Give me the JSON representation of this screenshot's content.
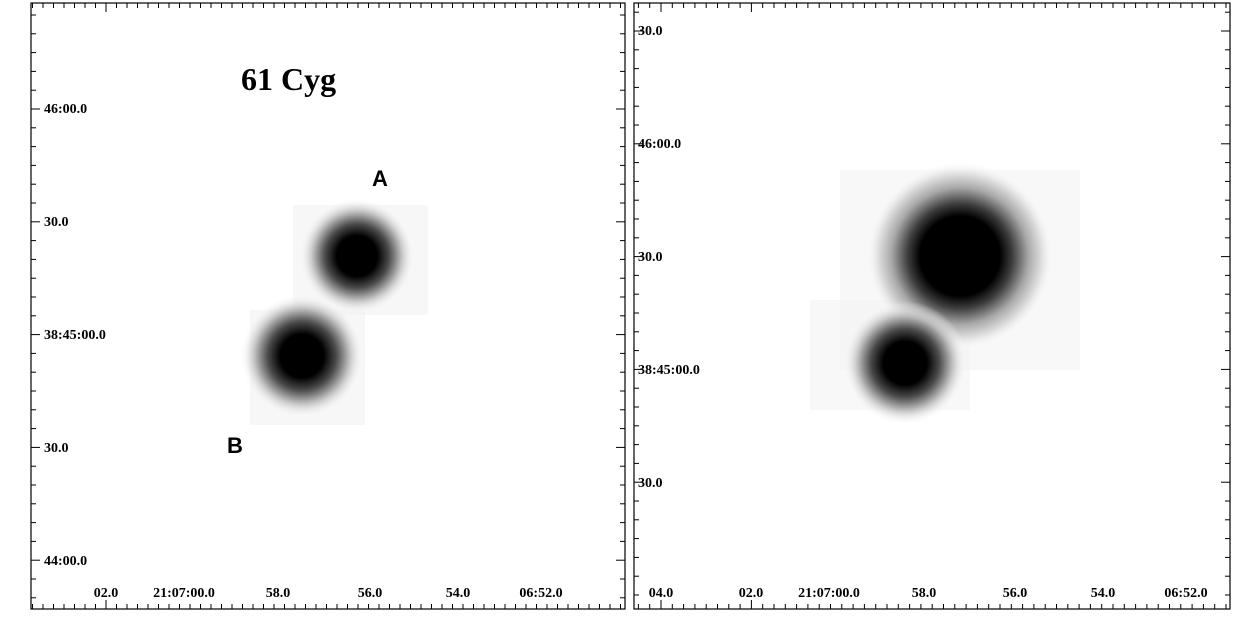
{
  "panels": [
    {
      "id": "left",
      "title": "61 Cyg",
      "star_labels": [
        "A",
        "B"
      ],
      "y_ticks": [
        "46:00.0",
        "30.0",
        "38:45:00.0",
        "30.0",
        "44:00.0"
      ],
      "x_ticks": [
        "02.0",
        "21:07:00.0",
        "58.0",
        "56.0",
        "54.0",
        "06:52.0"
      ]
    },
    {
      "id": "right",
      "y_ticks": [
        "30.0",
        "46:00.0",
        "30.0",
        "38:45:00.0",
        "30.0"
      ],
      "x_ticks": [
        "04.0",
        "02.0",
        "21:07:00.0",
        "58.0",
        "56.0",
        "54.0",
        "06:52.0"
      ]
    }
  ]
}
